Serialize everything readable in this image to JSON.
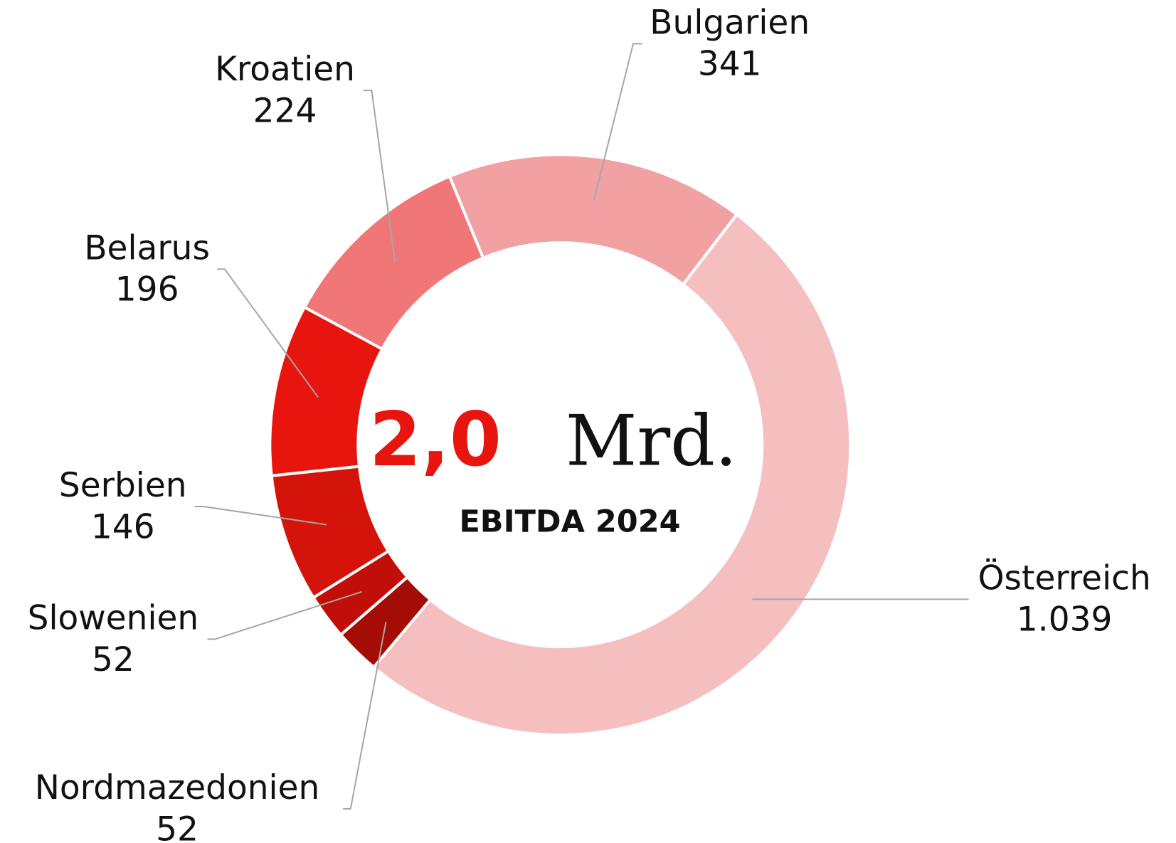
{
  "chart_data": {
    "type": "donut",
    "categories": [
      "Österreich",
      "Nordmazedonien",
      "Slowenien",
      "Serbien",
      "Belarus",
      "Kroatien",
      "Bulgarien"
    ],
    "values": [
      1039,
      52,
      52,
      146,
      196,
      224,
      341
    ],
    "value_labels": [
      "1.039",
      "52",
      "52",
      "146",
      "196",
      "224",
      "341"
    ],
    "colors": [
      "#f5bfc0",
      "#a50c06",
      "#c20e08",
      "#d4140a",
      "#e8150e",
      "#f07677",
      "#f2a1a2"
    ],
    "center_value": "2,0",
    "center_unit": "Mrd.",
    "center_label": "EBITDA 2024"
  }
}
